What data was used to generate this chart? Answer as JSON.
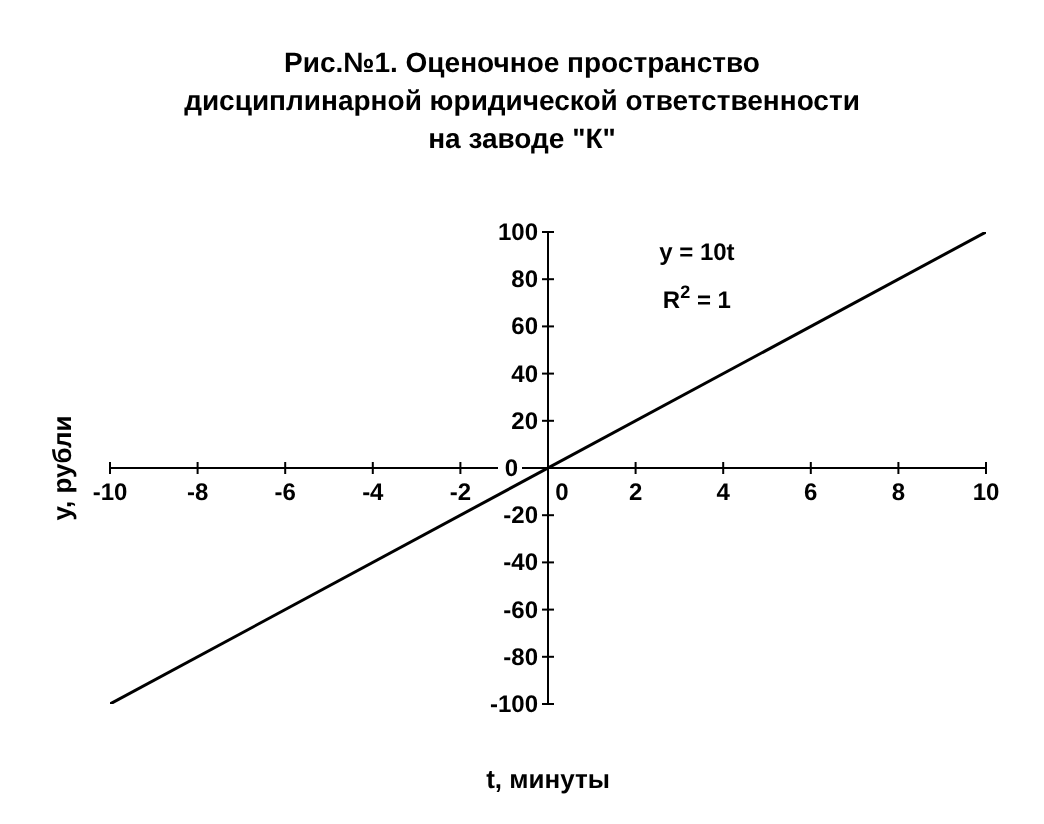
{
  "chart_data": {
    "type": "line",
    "title": "Рис.№1. Оценочное пространство\nдисциплинарной юридической ответственности\nна заводе \"К\"",
    "xlabel": "t, минуты",
    "ylabel": "y, рубли",
    "annotations": [
      "y = 10t",
      "R$^{2}$ = 1"
    ],
    "x": [
      -10,
      10
    ],
    "series": [
      {
        "color": "#000000",
        "values": [
          -100,
          100
        ]
      }
    ],
    "xlim": [
      -10,
      10
    ],
    "xticks": [
      -10,
      -8,
      -6,
      -4,
      -2,
      0,
      2,
      4,
      6,
      8,
      10
    ],
    "ylim": [
      -100,
      100
    ],
    "yticks": [
      -100,
      -80,
      -60,
      -40,
      -20,
      0,
      20,
      40,
      60,
      80,
      100
    ],
    "marker": "none",
    "line_style": "solid",
    "grid": false,
    "legend": false
  }
}
